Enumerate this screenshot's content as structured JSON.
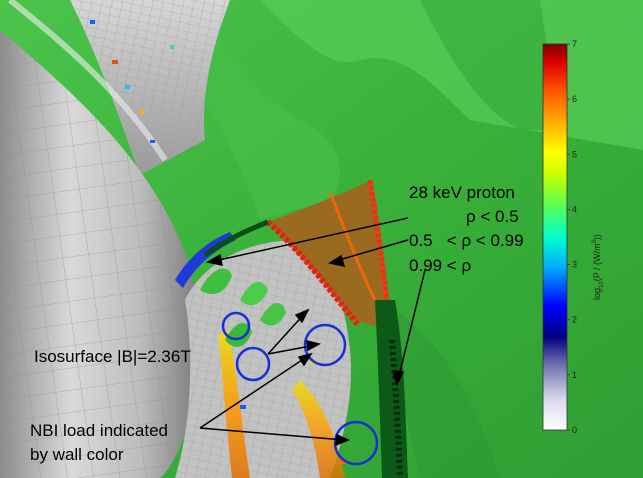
{
  "annotations": {
    "proton_title": "28 keV proton",
    "range_1": "ρ < 0.5",
    "range_2": "0.5   < ρ < 0.99",
    "range_3": "0.99 < ρ",
    "isosurface": "Isosurface |B|=2.36T",
    "nbi_line1": "NBI load indicated",
    "nbi_line2": "by wall color"
  },
  "colorbar": {
    "label_main": "log",
    "label_sub": "10",
    "label_rest": "(P / (W/m",
    "label_sup": "3",
    "label_end": "))",
    "min": 0,
    "max": 7,
    "ticks": [
      "0",
      "1",
      "2",
      "3",
      "4",
      "5",
      "6",
      "7"
    ],
    "colors": [
      "#ffffff",
      "#c8c8e6",
      "#5050a0",
      "#00007f",
      "#0000ff",
      "#00aaff",
      "#00ffcc",
      "#55ff55",
      "#c8ff00",
      "#ffff00",
      "#ffaa00",
      "#ff5500",
      "#e00000",
      "#7f0000"
    ]
  },
  "colors": {
    "surface_green": "#3eb83e",
    "wall_gray": "#c9c9c9",
    "orbit_brown": "#9a6a20",
    "orbit_red": "#e82010",
    "orbit_dark": "#0b4d12",
    "circle_blue": "#1a2fd6"
  }
}
